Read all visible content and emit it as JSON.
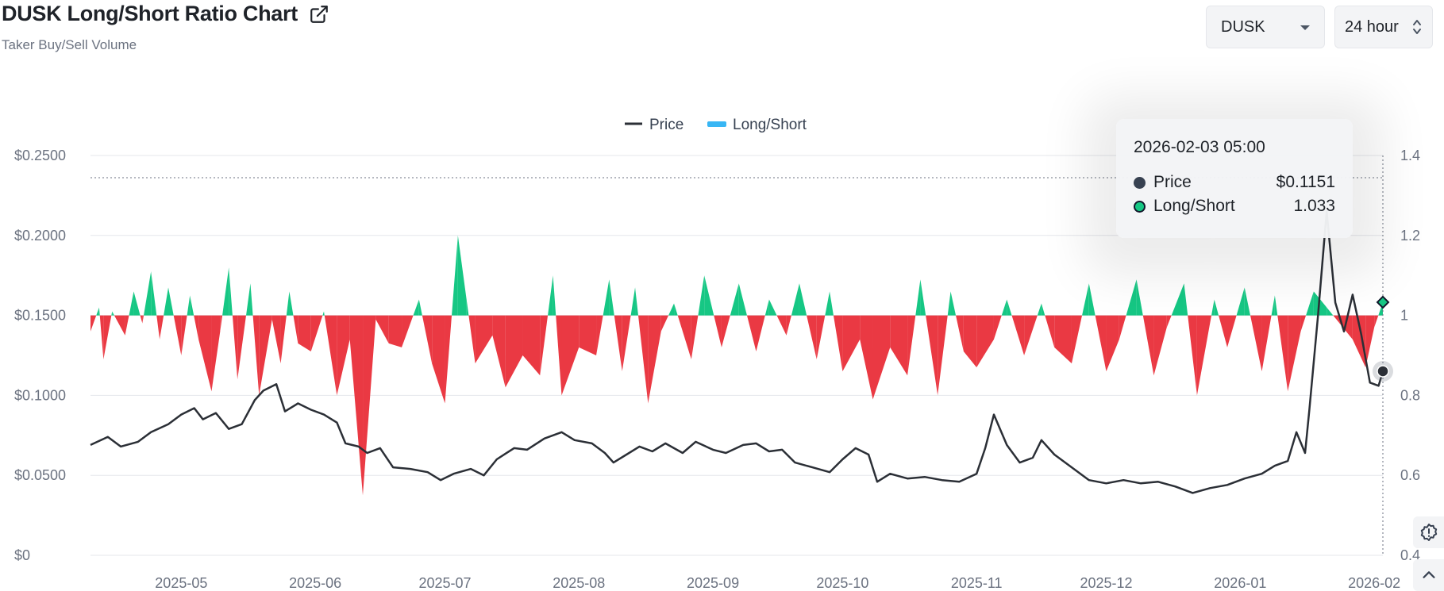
{
  "header": {
    "title": "DUSK Long/Short Ratio Chart",
    "subtitle": "Taker Buy/Sell Volume",
    "external_link_icon": "external-link-icon"
  },
  "controls": {
    "coin_select": {
      "value": "DUSK",
      "icon": "chevron-down-icon"
    },
    "range_select": {
      "value": "24 hour",
      "icon": "up-down-chevron-icon"
    }
  },
  "side_buttons": {
    "alert_icon": "alert-badge-icon",
    "scroll_top_icon": "chevron-up-icon"
  },
  "tooltip": {
    "time": "2026-02-03 05:00",
    "rows": [
      {
        "name": "Price",
        "value": "$0.1151",
        "color": "#374151"
      },
      {
        "name": "Long/Short",
        "value": "1.033",
        "color": "#16c784"
      }
    ]
  },
  "colors": {
    "positive": "#16c784",
    "negative": "#ea3943",
    "price_line": "#2b2f36",
    "grid": "#e5e7eb",
    "legend_ls": "#38b6f4"
  },
  "chart_data": {
    "type": "area",
    "legend": [
      "Price",
      "Long/Short"
    ],
    "legend_position": "top-center",
    "x_ticks": [
      "2025-05",
      "2025-06",
      "2025-07",
      "2025-08",
      "2025-09",
      "2025-10",
      "2025-11",
      "2025-12",
      "2026-01",
      "2026-02"
    ],
    "y_left": {
      "ticks": [
        "$0",
        "$0.0500",
        "$0.1000",
        "$0.1500",
        "$0.2000",
        "$0.2500"
      ],
      "range": [
        0,
        0.25
      ]
    },
    "y_right": {
      "ticks": [
        "0.4",
        "0.6",
        "0.8",
        "1",
        "1.2",
        "1.4"
      ],
      "range": [
        0.4,
        1.4
      ]
    },
    "grid": true,
    "baseline": 1,
    "x_range": [
      "2025-04-10",
      "2026-02-03"
    ],
    "price_points": [
      [
        "2025-04-10",
        0.069
      ],
      [
        "2025-04-14",
        0.074
      ],
      [
        "2025-04-17",
        0.068
      ],
      [
        "2025-04-21",
        0.071
      ],
      [
        "2025-04-24",
        0.077
      ],
      [
        "2025-04-28",
        0.082
      ],
      [
        "2025-05-01",
        0.088
      ],
      [
        "2025-05-04",
        0.092
      ],
      [
        "2025-05-06",
        0.085
      ],
      [
        "2025-05-09",
        0.089
      ],
      [
        "2025-05-12",
        0.079
      ],
      [
        "2025-05-15",
        0.082
      ],
      [
        "2025-05-18",
        0.097
      ],
      [
        "2025-05-20",
        0.103
      ],
      [
        "2025-05-23",
        0.107
      ],
      [
        "2025-05-25",
        0.09
      ],
      [
        "2025-05-28",
        0.095
      ],
      [
        "2025-05-31",
        0.091
      ],
      [
        "2025-06-03",
        0.088
      ],
      [
        "2025-06-06",
        0.083
      ],
      [
        "2025-06-08",
        0.07
      ],
      [
        "2025-06-11",
        0.068
      ],
      [
        "2025-06-13",
        0.064
      ],
      [
        "2025-06-16",
        0.067
      ],
      [
        "2025-06-19",
        0.055
      ],
      [
        "2025-06-23",
        0.054
      ],
      [
        "2025-06-27",
        0.052
      ],
      [
        "2025-06-30",
        0.047
      ],
      [
        "2025-07-03",
        0.051
      ],
      [
        "2025-07-07",
        0.054
      ],
      [
        "2025-07-10",
        0.05
      ],
      [
        "2025-07-13",
        0.06
      ],
      [
        "2025-07-17",
        0.067
      ],
      [
        "2025-07-20",
        0.066
      ],
      [
        "2025-07-24",
        0.073
      ],
      [
        "2025-07-28",
        0.077
      ],
      [
        "2025-07-31",
        0.072
      ],
      [
        "2025-08-04",
        0.07
      ],
      [
        "2025-08-07",
        0.064
      ],
      [
        "2025-08-09",
        0.058
      ],
      [
        "2025-08-12",
        0.063
      ],
      [
        "2025-08-15",
        0.068
      ],
      [
        "2025-08-18",
        0.065
      ],
      [
        "2025-08-21",
        0.07
      ],
      [
        "2025-08-25",
        0.064
      ],
      [
        "2025-08-28",
        0.071
      ],
      [
        "2025-09-01",
        0.066
      ],
      [
        "2025-09-04",
        0.064
      ],
      [
        "2025-09-08",
        0.069
      ],
      [
        "2025-09-11",
        0.07
      ],
      [
        "2025-09-14",
        0.065
      ],
      [
        "2025-09-17",
        0.066
      ],
      [
        "2025-09-20",
        0.058
      ],
      [
        "2025-09-24",
        0.055
      ],
      [
        "2025-09-28",
        0.052
      ],
      [
        "2025-10-01",
        0.06
      ],
      [
        "2025-10-04",
        0.067
      ],
      [
        "2025-10-07",
        0.063
      ],
      [
        "2025-10-09",
        0.046
      ],
      [
        "2025-10-12",
        0.051
      ],
      [
        "2025-10-16",
        0.048
      ],
      [
        "2025-10-20",
        0.049
      ],
      [
        "2025-10-24",
        0.047
      ],
      [
        "2025-10-28",
        0.046
      ],
      [
        "2025-11-01",
        0.051
      ],
      [
        "2025-11-03",
        0.067
      ],
      [
        "2025-11-05",
        0.088
      ],
      [
        "2025-11-08",
        0.069
      ],
      [
        "2025-11-11",
        0.058
      ],
      [
        "2025-11-14",
        0.061
      ],
      [
        "2025-11-16",
        0.072
      ],
      [
        "2025-11-19",
        0.063
      ],
      [
        "2025-11-23",
        0.055
      ],
      [
        "2025-11-27",
        0.047
      ],
      [
        "2025-12-01",
        0.045
      ],
      [
        "2025-12-05",
        0.047
      ],
      [
        "2025-12-09",
        0.045
      ],
      [
        "2025-12-13",
        0.046
      ],
      [
        "2025-12-17",
        0.043
      ],
      [
        "2025-12-21",
        0.039
      ],
      [
        "2025-12-25",
        0.042
      ],
      [
        "2025-12-29",
        0.044
      ],
      [
        "2026-01-02",
        0.048
      ],
      [
        "2026-01-06",
        0.051
      ],
      [
        "2026-01-09",
        0.056
      ],
      [
        "2026-01-12",
        0.059
      ],
      [
        "2026-01-14",
        0.077
      ],
      [
        "2026-01-16",
        0.064
      ],
      [
        "2026-01-17",
        0.091
      ],
      [
        "2026-01-19",
        0.15
      ],
      [
        "2026-01-20",
        0.183
      ],
      [
        "2026-01-21",
        0.215
      ],
      [
        "2026-01-23",
        0.158
      ],
      [
        "2026-01-25",
        0.14
      ],
      [
        "2026-01-27",
        0.163
      ],
      [
        "2026-01-29",
        0.138
      ],
      [
        "2026-01-31",
        0.108
      ],
      [
        "2026-02-02",
        0.106
      ],
      [
        "2026-02-03",
        0.1151
      ]
    ],
    "ratio_points": [
      [
        "2025-04-10",
        0.96
      ],
      [
        "2025-04-12",
        1.02
      ],
      [
        "2025-04-13",
        0.89
      ],
      [
        "2025-04-15",
        1.01
      ],
      [
        "2025-04-18",
        0.95
      ],
      [
        "2025-04-20",
        1.06
      ],
      [
        "2025-04-22",
        0.98
      ],
      [
        "2025-04-24",
        1.11
      ],
      [
        "2025-04-26",
        0.94
      ],
      [
        "2025-04-28",
        1.07
      ],
      [
        "2025-05-01",
        0.9
      ],
      [
        "2025-05-03",
        1.05
      ],
      [
        "2025-05-05",
        0.94
      ],
      [
        "2025-05-08",
        0.81
      ],
      [
        "2025-05-10",
        0.96
      ],
      [
        "2025-05-12",
        1.12
      ],
      [
        "2025-05-14",
        0.84
      ],
      [
        "2025-05-17",
        1.08
      ],
      [
        "2025-05-19",
        0.8
      ],
      [
        "2025-05-22",
        0.99
      ],
      [
        "2025-05-24",
        0.88
      ],
      [
        "2025-05-26",
        1.06
      ],
      [
        "2025-05-28",
        0.93
      ],
      [
        "2025-05-31",
        0.91
      ],
      [
        "2025-06-03",
        1.01
      ],
      [
        "2025-06-06",
        0.8
      ],
      [
        "2025-06-09",
        0.94
      ],
      [
        "2025-06-12",
        0.55
      ],
      [
        "2025-06-15",
        0.99
      ],
      [
        "2025-06-18",
        0.93
      ],
      [
        "2025-06-21",
        0.92
      ],
      [
        "2025-06-25",
        1.04
      ],
      [
        "2025-06-28",
        0.88
      ],
      [
        "2025-07-01",
        0.78
      ],
      [
        "2025-07-04",
        1.2
      ],
      [
        "2025-07-06",
        1.04
      ],
      [
        "2025-07-08",
        0.88
      ],
      [
        "2025-07-12",
        0.95
      ],
      [
        "2025-07-15",
        0.82
      ],
      [
        "2025-07-19",
        0.9
      ],
      [
        "2025-07-23",
        0.85
      ],
      [
        "2025-07-26",
        1.1
      ],
      [
        "2025-07-28",
        0.8
      ],
      [
        "2025-08-01",
        0.92
      ],
      [
        "2025-08-05",
        0.9
      ],
      [
        "2025-08-08",
        1.09
      ],
      [
        "2025-08-11",
        0.86
      ],
      [
        "2025-08-14",
        1.07
      ],
      [
        "2025-08-17",
        0.78
      ],
      [
        "2025-08-20",
        0.96
      ],
      [
        "2025-08-23",
        1.03
      ],
      [
        "2025-08-27",
        0.89
      ],
      [
        "2025-08-30",
        1.1
      ],
      [
        "2025-09-03",
        0.92
      ],
      [
        "2025-09-07",
        1.08
      ],
      [
        "2025-09-11",
        0.91
      ],
      [
        "2025-09-14",
        1.04
      ],
      [
        "2025-09-18",
        0.95
      ],
      [
        "2025-09-21",
        1.08
      ],
      [
        "2025-09-25",
        0.89
      ],
      [
        "2025-09-28",
        1.06
      ],
      [
        "2025-10-01",
        0.86
      ],
      [
        "2025-10-05",
        0.94
      ],
      [
        "2025-10-08",
        0.79
      ],
      [
        "2025-10-12",
        0.92
      ],
      [
        "2025-10-16",
        0.85
      ],
      [
        "2025-10-19",
        1.09
      ],
      [
        "2025-10-23",
        0.8
      ],
      [
        "2025-10-26",
        1.06
      ],
      [
        "2025-10-29",
        0.91
      ],
      [
        "2025-11-01",
        0.87
      ],
      [
        "2025-11-05",
        0.94
      ],
      [
        "2025-11-08",
        1.04
      ],
      [
        "2025-11-12",
        0.9
      ],
      [
        "2025-11-16",
        1.03
      ],
      [
        "2025-11-19",
        0.92
      ],
      [
        "2025-11-23",
        0.88
      ],
      [
        "2025-11-27",
        1.08
      ],
      [
        "2025-12-01",
        0.86
      ],
      [
        "2025-12-04",
        0.94
      ],
      [
        "2025-12-08",
        1.09
      ],
      [
        "2025-12-12",
        0.85
      ],
      [
        "2025-12-15",
        0.97
      ],
      [
        "2025-12-19",
        1.08
      ],
      [
        "2025-12-22",
        0.8
      ],
      [
        "2025-12-26",
        1.04
      ],
      [
        "2025-12-29",
        0.92
      ],
      [
        "2026-01-02",
        1.07
      ],
      [
        "2026-01-06",
        0.86
      ],
      [
        "2026-01-09",
        1.05
      ],
      [
        "2026-01-12",
        0.81
      ],
      [
        "2026-01-15",
        0.96
      ],
      [
        "2026-01-18",
        1.06
      ],
      [
        "2026-01-21",
        1.02
      ],
      [
        "2026-01-24",
        0.98
      ],
      [
        "2026-01-27",
        0.94
      ],
      [
        "2026-01-30",
        0.87
      ],
      [
        "2026-02-01",
        0.97
      ],
      [
        "2026-02-03",
        1.033
      ]
    ]
  }
}
